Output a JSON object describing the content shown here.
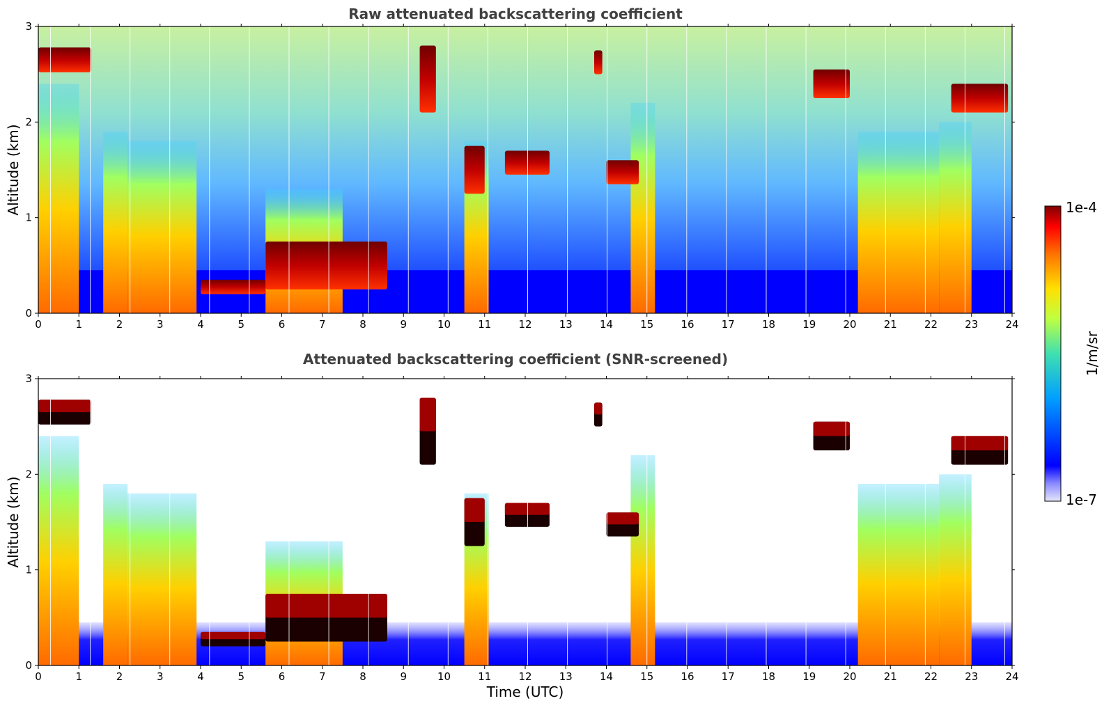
{
  "chart_data": [
    {
      "type": "heatmap",
      "title": "Raw attenuated backscattering coefficient",
      "xlabel": "",
      "ylabel": "Altitude (km)",
      "xlim": [
        0,
        24
      ],
      "ylim": [
        0,
        3
      ],
      "xticks": [
        0,
        1,
        2,
        3,
        4,
        5,
        6,
        7,
        8,
        9,
        10,
        11,
        12,
        13,
        14,
        15,
        16,
        17,
        18,
        19,
        20,
        21,
        22,
        23,
        24
      ],
      "yticks": [
        0,
        1,
        2,
        3
      ],
      "screened": false,
      "clouds": [
        {
          "x": 0.0,
          "x2": 1.3,
          "base": 2.52,
          "top": 2.78
        },
        {
          "x": 5.6,
          "x2": 8.6,
          "base": 0.25,
          "top": 0.75
        },
        {
          "x": 4.0,
          "x2": 5.6,
          "base": 0.2,
          "top": 0.35
        },
        {
          "x": 19.1,
          "x2": 20.0,
          "base": 2.25,
          "top": 2.55
        },
        {
          "x": 22.5,
          "x2": 23.9,
          "base": 2.1,
          "top": 2.4
        },
        {
          "x": 9.4,
          "x2": 9.8,
          "base": 2.1,
          "top": 2.8
        },
        {
          "x": 13.7,
          "x2": 13.9,
          "base": 2.5,
          "top": 2.75
        },
        {
          "x": 10.5,
          "x2": 11.0,
          "base": 1.25,
          "top": 1.75
        },
        {
          "x": 14.0,
          "x2": 14.8,
          "base": 1.35,
          "top": 1.6
        },
        {
          "x": 11.5,
          "x2": 12.6,
          "base": 1.45,
          "top": 1.7
        }
      ],
      "plumes": [
        {
          "x": 0.0,
          "x2": 1.0,
          "top": 2.4
        },
        {
          "x": 1.6,
          "x2": 2.2,
          "top": 1.9
        },
        {
          "x": 2.2,
          "x2": 3.9,
          "top": 1.8
        },
        {
          "x": 5.6,
          "x2": 7.5,
          "top": 1.3
        },
        {
          "x": 10.5,
          "x2": 11.1,
          "top": 1.8
        },
        {
          "x": 14.6,
          "x2": 15.2,
          "top": 2.2
        },
        {
          "x": 20.2,
          "x2": 22.2,
          "top": 1.9
        },
        {
          "x": 22.2,
          "x2": 23.0,
          "top": 2.0
        }
      ],
      "background_layer_top_km": 0.45
    },
    {
      "type": "heatmap",
      "title": "Attenuated backscattering coefficient (SNR-screened)",
      "xlabel": "Time (UTC)",
      "ylabel": "Altitude (km)",
      "xlim": [
        0,
        24
      ],
      "ylim": [
        0,
        3
      ],
      "xticks": [
        0,
        1,
        2,
        3,
        4,
        5,
        6,
        7,
        8,
        9,
        10,
        11,
        12,
        13,
        14,
        15,
        16,
        17,
        18,
        19,
        20,
        21,
        22,
        23,
        24
      ],
      "yticks": [
        0,
        1,
        2,
        3
      ],
      "screened": true,
      "clouds": [
        {
          "x": 0.0,
          "x2": 1.3,
          "base": 2.52,
          "top": 2.78
        },
        {
          "x": 5.6,
          "x2": 8.6,
          "base": 0.25,
          "top": 0.75
        },
        {
          "x": 4.0,
          "x2": 5.6,
          "base": 0.2,
          "top": 0.35
        },
        {
          "x": 19.1,
          "x2": 20.0,
          "base": 2.25,
          "top": 2.55
        },
        {
          "x": 22.5,
          "x2": 23.9,
          "base": 2.1,
          "top": 2.4
        },
        {
          "x": 9.4,
          "x2": 9.8,
          "base": 2.1,
          "top": 2.8
        },
        {
          "x": 13.7,
          "x2": 13.9,
          "base": 2.5,
          "top": 2.75
        },
        {
          "x": 10.5,
          "x2": 11.0,
          "base": 1.25,
          "top": 1.75
        },
        {
          "x": 14.0,
          "x2": 14.8,
          "base": 1.35,
          "top": 1.6
        },
        {
          "x": 11.5,
          "x2": 12.6,
          "base": 1.45,
          "top": 1.7
        }
      ],
      "plumes": [
        {
          "x": 0.0,
          "x2": 1.0,
          "top": 2.4
        },
        {
          "x": 1.6,
          "x2": 2.2,
          "top": 1.9
        },
        {
          "x": 2.2,
          "x2": 3.9,
          "top": 1.8
        },
        {
          "x": 5.6,
          "x2": 7.5,
          "top": 1.3
        },
        {
          "x": 10.5,
          "x2": 11.1,
          "top": 1.8
        },
        {
          "x": 14.6,
          "x2": 15.2,
          "top": 2.2
        },
        {
          "x": 20.2,
          "x2": 22.2,
          "top": 1.9
        },
        {
          "x": 22.2,
          "x2": 23.0,
          "top": 2.0
        }
      ],
      "background_layer_top_km": 0.45
    }
  ],
  "colorbar": {
    "label": "1/m/sr",
    "max_label": "1e-4",
    "min_label": "1e-7",
    "scale": "log",
    "range": [
      1e-07,
      0.0001
    ],
    "colormap": "jet",
    "colors": [
      "#e6e6fa",
      "#0000ff",
      "#00bfff",
      "#40e0a0",
      "#c0ff40",
      "#ffe000",
      "#ff8000",
      "#ff0000",
      "#800000"
    ]
  }
}
